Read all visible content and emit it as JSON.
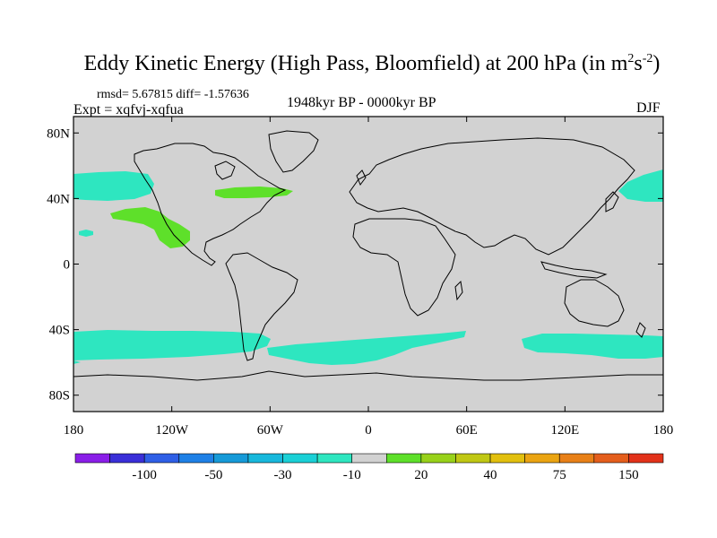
{
  "title": {
    "main": "Eddy Kinetic Energy (High Pass, Bloomfield) at 200 hPa (in m",
    "sup1": "2",
    "mid": "s",
    "sup2": "-2",
    "close": ")"
  },
  "stats": {
    "line": "rmsd= 5.67815 diff= -1.57636",
    "expt": "Expt = xqfvj-xqfua",
    "period": "1948kyr BP - 0000kyr BP",
    "season": "DJF"
  },
  "axes": {
    "lat_ticks": [
      {
        "lat": 80,
        "label": "80N"
      },
      {
        "lat": 40,
        "label": "40N"
      },
      {
        "lat": 0,
        "label": "0"
      },
      {
        "lat": -40,
        "label": "40S"
      },
      {
        "lat": -80,
        "label": "80S"
      }
    ],
    "lon_ticks": [
      {
        "lon": -180,
        "label": "180"
      },
      {
        "lon": -120,
        "label": "120W"
      },
      {
        "lon": -60,
        "label": "60W"
      },
      {
        "lon": 0,
        "label": "0"
      },
      {
        "lon": 60,
        "label": "60E"
      },
      {
        "lon": 120,
        "label": "120E"
      },
      {
        "lon": 180,
        "label": "180"
      }
    ]
  },
  "colorbar": {
    "colors": [
      "#8a1ee8",
      "#3a2fd8",
      "#2f5fe6",
      "#1f80e6",
      "#169ad8",
      "#18b8dc",
      "#1ad0d6",
      "#2ee6c0",
      "#d2d2d2",
      "#5ee02a",
      "#98d21a",
      "#c0c814",
      "#e2c00e",
      "#eaa412",
      "#e88018",
      "#e45e1c",
      "#e2321a"
    ],
    "labels": [
      {
        "boundary": 2,
        "text": "-100"
      },
      {
        "boundary": 4,
        "text": "-50"
      },
      {
        "boundary": 6,
        "text": "-30"
      },
      {
        "boundary": 8,
        "text": "-10"
      },
      {
        "boundary": 10,
        "text": "20"
      },
      {
        "boundary": 12,
        "text": "40"
      },
      {
        "boundary": 14,
        "text": "75"
      },
      {
        "boundary": 16,
        "text": "150"
      }
    ]
  },
  "field_colors": {
    "neg": "#2ee6c0",
    "pos": "#5ee02a",
    "bg": "#d2d2d2"
  }
}
